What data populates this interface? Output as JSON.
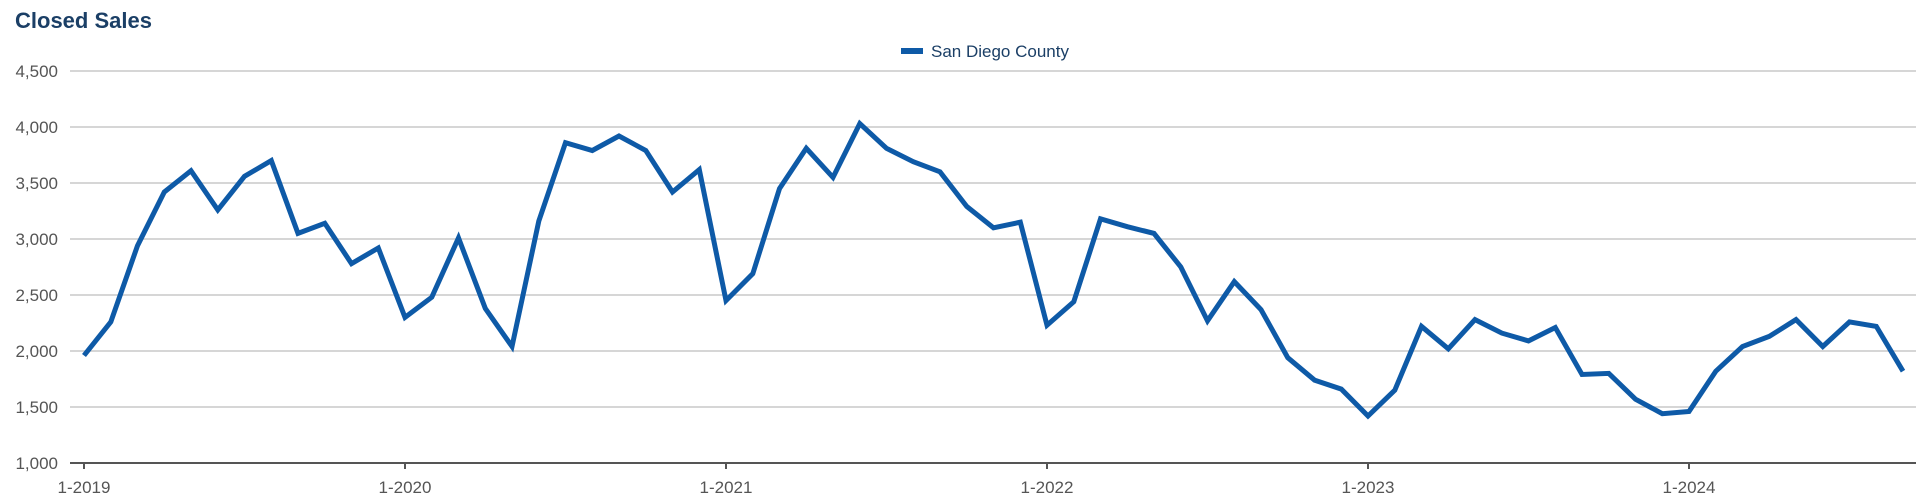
{
  "chart_data": {
    "type": "line",
    "title": "Closed Sales",
    "xlabel": "",
    "ylabel": "",
    "ylim": [
      1000,
      4500
    ],
    "yticks": [
      "1,000",
      "1,500",
      "2,000",
      "2,500",
      "3,000",
      "3,500",
      "4,000",
      "4,500"
    ],
    "ytick_values": [
      1000,
      1500,
      2000,
      2500,
      3000,
      3500,
      4000,
      4500
    ],
    "xticks": [
      "1-2019",
      "1-2020",
      "1-2021",
      "1-2022",
      "1-2023",
      "1-2024"
    ],
    "x_start": "1-2019",
    "x_end": "9-2024",
    "grid": true,
    "legend_position": "top-center",
    "series": [
      {
        "name": "San Diego County",
        "color": "#0e5aa7",
        "values": [
          1960,
          2260,
          2940,
          3420,
          3610,
          3260,
          3560,
          3700,
          3050,
          3140,
          2780,
          2920,
          2300,
          2480,
          3010,
          2380,
          2040,
          3160,
          3860,
          3790,
          3920,
          3790,
          3420,
          3620,
          2450,
          2690,
          3450,
          3810,
          3550,
          4030,
          3810,
          3690,
          3600,
          3290,
          3100,
          3150,
          2230,
          2440,
          3180,
          3110,
          3050,
          2750,
          2270,
          2620,
          2370,
          1940,
          1740,
          1660,
          1420,
          1650,
          2220,
          2020,
          2280,
          2160,
          2090,
          2210,
          1790,
          1800,
          1570,
          1440,
          1460,
          1820,
          2040,
          2130,
          2280,
          2040,
          2260,
          2220,
          1820
        ]
      }
    ]
  }
}
